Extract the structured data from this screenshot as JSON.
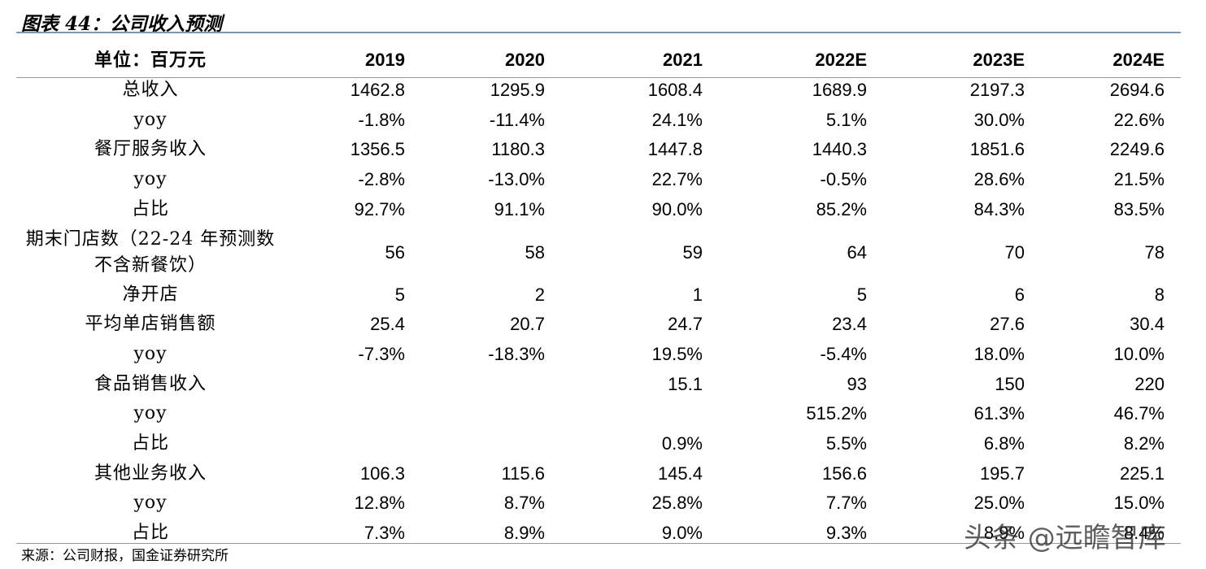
{
  "title": "图表 44：公司收入预测",
  "table": {
    "header": [
      "单位：百万元",
      "2019",
      "2020",
      "2021",
      "2022E",
      "2023E",
      "2024E"
    ],
    "rows": [
      {
        "label": "总收入",
        "cells": [
          "1462.8",
          "1295.9",
          "1608.4",
          "1689.9",
          "2197.3",
          "2694.6"
        ]
      },
      {
        "label": "yoy",
        "cells": [
          "-1.8%",
          "-11.4%",
          "24.1%",
          "5.1%",
          "30.0%",
          "22.6%"
        ]
      },
      {
        "label": "餐厅服务收入",
        "cells": [
          "1356.5",
          "1180.3",
          "1447.8",
          "1440.3",
          "1851.6",
          "2249.6"
        ]
      },
      {
        "label": "yoy",
        "cells": [
          "-2.8%",
          "-13.0%",
          "22.7%",
          "-0.5%",
          "28.6%",
          "21.5%"
        ]
      },
      {
        "label": "占比",
        "cells": [
          "92.7%",
          "91.1%",
          "90.0%",
          "85.2%",
          "84.3%",
          "83.5%"
        ]
      },
      {
        "label": "期末门店数（22-24 年预测数不含新餐饮）",
        "cells": [
          "56",
          "58",
          "59",
          "64",
          "70",
          "78"
        ]
      },
      {
        "label": "净开店",
        "cells": [
          "5",
          "2",
          "1",
          "5",
          "6",
          "8"
        ]
      },
      {
        "label": "平均单店销售额",
        "cells": [
          "25.4",
          "20.7",
          "24.7",
          "23.4",
          "27.6",
          "30.4"
        ]
      },
      {
        "label": "yoy",
        "cells": [
          "-7.3%",
          "-18.3%",
          "19.5%",
          "-5.4%",
          "18.0%",
          "10.0%"
        ]
      },
      {
        "label": "食品销售收入",
        "cells": [
          null,
          null,
          "15.1",
          "93",
          "150",
          "220"
        ]
      },
      {
        "label": "yoy",
        "cells": [
          null,
          null,
          null,
          "515.2%",
          "61.3%",
          "46.7%"
        ]
      },
      {
        "label": "占比",
        "cells": [
          null,
          null,
          "0.9%",
          "5.5%",
          "6.8%",
          "8.2%"
        ]
      },
      {
        "label": "其他业务收入",
        "cells": [
          "106.3",
          "115.6",
          "145.4",
          "156.6",
          "195.7",
          "225.1"
        ]
      },
      {
        "label": "yoy",
        "cells": [
          "12.8%",
          "8.7%",
          "25.8%",
          "7.7%",
          "25.0%",
          "15.0%"
        ]
      },
      {
        "label": "占比",
        "cells": [
          "7.3%",
          "8.9%",
          "9.0%",
          "9.3%",
          "8.9%",
          "8.4%"
        ]
      }
    ]
  },
  "source": "来源：公司财报，国金证券研究所",
  "watermark": "头条 @远瞻智库"
}
